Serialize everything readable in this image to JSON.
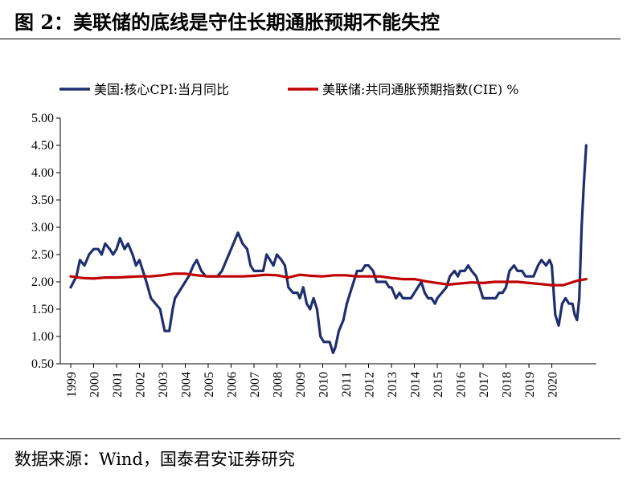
{
  "header": {
    "title": "图 2：美联储的底线是守住长期通胀预期不能失控"
  },
  "footer": {
    "source": "数据来源：Wind，国泰君安证券研究"
  },
  "colors": {
    "cpi": "#1f2f6e",
    "cie": "#c00000"
  },
  "chart_data": {
    "type": "line",
    "title": "",
    "xlabel": "",
    "ylabel": "",
    "ylim": [
      0.5,
      5.0
    ],
    "yticks": [
      "5.00",
      "4.50",
      "4.00",
      "3.50",
      "3.00",
      "2.50",
      "2.00",
      "1.50",
      "1.00",
      "0.50"
    ],
    "xticks": [
      "1999",
      "2000",
      "2001",
      "2002",
      "2003",
      "2004",
      "2005",
      "2006",
      "2007",
      "2008",
      "2009",
      "2010",
      "2011",
      "2012",
      "2013",
      "2014",
      "2015",
      "2016",
      "2017",
      "2018",
      "2019",
      "2020"
    ],
    "grid": false,
    "legend_position": "top",
    "series": [
      {
        "name": "美国:核心CPI:当月同比",
        "color": "#1f2f6e",
        "points": [
          [
            1999.0,
            1.9
          ],
          [
            1999.25,
            2.1
          ],
          [
            1999.4,
            2.4
          ],
          [
            1999.6,
            2.3
          ],
          [
            1999.8,
            2.5
          ],
          [
            2000.0,
            2.6
          ],
          [
            2000.2,
            2.6
          ],
          [
            2000.35,
            2.5
          ],
          [
            2000.5,
            2.7
          ],
          [
            2000.7,
            2.6
          ],
          [
            2000.85,
            2.5
          ],
          [
            2001.0,
            2.6
          ],
          [
            2001.15,
            2.8
          ],
          [
            2001.35,
            2.6
          ],
          [
            2001.5,
            2.7
          ],
          [
            2001.7,
            2.5
          ],
          [
            2001.85,
            2.3
          ],
          [
            2002.0,
            2.4
          ],
          [
            2002.15,
            2.2
          ],
          [
            2002.3,
            2.0
          ],
          [
            2002.5,
            1.7
          ],
          [
            2002.7,
            1.6
          ],
          [
            2002.9,
            1.5
          ],
          [
            2003.0,
            1.3
          ],
          [
            2003.1,
            1.1
          ],
          [
            2003.3,
            1.1
          ],
          [
            2003.45,
            1.5
          ],
          [
            2003.55,
            1.7
          ],
          [
            2003.7,
            1.8
          ],
          [
            2003.85,
            1.9
          ],
          [
            2004.0,
            2.0
          ],
          [
            2004.15,
            2.1
          ],
          [
            2004.35,
            2.3
          ],
          [
            2004.5,
            2.4
          ],
          [
            2004.7,
            2.2
          ],
          [
            2004.9,
            2.1
          ],
          [
            2005.0,
            2.1
          ],
          [
            2005.2,
            2.1
          ],
          [
            2005.4,
            2.1
          ],
          [
            2005.6,
            2.2
          ],
          [
            2005.8,
            2.4
          ],
          [
            2006.0,
            2.6
          ],
          [
            2006.2,
            2.8
          ],
          [
            2006.3,
            2.9
          ],
          [
            2006.5,
            2.7
          ],
          [
            2006.7,
            2.6
          ],
          [
            2006.85,
            2.3
          ],
          [
            2007.0,
            2.2
          ],
          [
            2007.2,
            2.2
          ],
          [
            2007.4,
            2.2
          ],
          [
            2007.55,
            2.5
          ],
          [
            2007.7,
            2.4
          ],
          [
            2007.85,
            2.3
          ],
          [
            2008.0,
            2.5
          ],
          [
            2008.2,
            2.4
          ],
          [
            2008.35,
            2.3
          ],
          [
            2008.5,
            1.9
          ],
          [
            2008.7,
            1.8
          ],
          [
            2008.9,
            1.8
          ],
          [
            2009.0,
            1.7
          ],
          [
            2009.15,
            1.9
          ],
          [
            2009.3,
            1.6
          ],
          [
            2009.45,
            1.5
          ],
          [
            2009.6,
            1.7
          ],
          [
            2009.75,
            1.5
          ],
          [
            2009.9,
            1.0
          ],
          [
            2010.05,
            0.9
          ],
          [
            2010.3,
            0.9
          ],
          [
            2010.45,
            0.7
          ],
          [
            2010.55,
            0.8
          ],
          [
            2010.7,
            1.1
          ],
          [
            2010.9,
            1.3
          ],
          [
            2011.05,
            1.6
          ],
          [
            2011.2,
            1.8
          ],
          [
            2011.35,
            2.0
          ],
          [
            2011.5,
            2.2
          ],
          [
            2011.7,
            2.2
          ],
          [
            2011.85,
            2.3
          ],
          [
            2012.0,
            2.3
          ],
          [
            2012.2,
            2.2
          ],
          [
            2012.35,
            2.0
          ],
          [
            2012.55,
            2.0
          ],
          [
            2012.75,
            2.0
          ],
          [
            2012.9,
            1.9
          ],
          [
            2013.0,
            1.9
          ],
          [
            2013.2,
            1.7
          ],
          [
            2013.35,
            1.8
          ],
          [
            2013.5,
            1.7
          ],
          [
            2013.65,
            1.7
          ],
          [
            2013.85,
            1.7
          ],
          [
            2014.0,
            1.8
          ],
          [
            2014.15,
            1.9
          ],
          [
            2014.3,
            2.0
          ],
          [
            2014.45,
            1.8
          ],
          [
            2014.6,
            1.7
          ],
          [
            2014.75,
            1.7
          ],
          [
            2014.9,
            1.6
          ],
          [
            2015.0,
            1.7
          ],
          [
            2015.2,
            1.8
          ],
          [
            2015.4,
            1.9
          ],
          [
            2015.55,
            2.1
          ],
          [
            2015.75,
            2.2
          ],
          [
            2015.9,
            2.1
          ],
          [
            2016.0,
            2.2
          ],
          [
            2016.2,
            2.2
          ],
          [
            2016.35,
            2.3
          ],
          [
            2016.5,
            2.2
          ],
          [
            2016.7,
            2.1
          ],
          [
            2016.85,
            1.9
          ],
          [
            2017.0,
            1.7
          ],
          [
            2017.2,
            1.7
          ],
          [
            2017.4,
            1.7
          ],
          [
            2017.55,
            1.7
          ],
          [
            2017.7,
            1.8
          ],
          [
            2017.85,
            1.8
          ],
          [
            2018.0,
            1.9
          ],
          [
            2018.15,
            2.2
          ],
          [
            2018.35,
            2.3
          ],
          [
            2018.5,
            2.2
          ],
          [
            2018.7,
            2.2
          ],
          [
            2018.85,
            2.1
          ],
          [
            2019.0,
            2.1
          ],
          [
            2019.2,
            2.1
          ],
          [
            2019.4,
            2.3
          ],
          [
            2019.55,
            2.4
          ],
          [
            2019.75,
            2.3
          ],
          [
            2019.9,
            2.4
          ],
          [
            2020.0,
            2.3
          ],
          [
            2020.15,
            1.4
          ],
          [
            2020.3,
            1.2
          ],
          [
            2020.45,
            1.6
          ],
          [
            2020.6,
            1.7
          ],
          [
            2020.75,
            1.6
          ],
          [
            2020.9,
            1.6
          ],
          [
            2021.0,
            1.4
          ],
          [
            2021.1,
            1.3
          ],
          [
            2021.2,
            1.7
          ],
          [
            2021.3,
            3.0
          ],
          [
            2021.4,
            3.8
          ],
          [
            2021.5,
            4.5
          ]
        ]
      },
      {
        "name": "美联储:共同通胀预期指数(CIE) %",
        "color": "#c00000",
        "points": [
          [
            1999.0,
            2.1
          ],
          [
            1999.5,
            2.07
          ],
          [
            2000.0,
            2.06
          ],
          [
            2000.5,
            2.08
          ],
          [
            2001.0,
            2.08
          ],
          [
            2001.5,
            2.09
          ],
          [
            2002.0,
            2.1
          ],
          [
            2002.5,
            2.1
          ],
          [
            2003.0,
            2.12
          ],
          [
            2003.5,
            2.15
          ],
          [
            2004.0,
            2.15
          ],
          [
            2004.5,
            2.12
          ],
          [
            2005.0,
            2.1
          ],
          [
            2005.5,
            2.1
          ],
          [
            2006.0,
            2.1
          ],
          [
            2006.5,
            2.1
          ],
          [
            2007.0,
            2.11
          ],
          [
            2007.5,
            2.13
          ],
          [
            2008.0,
            2.12
          ],
          [
            2008.5,
            2.08
          ],
          [
            2009.0,
            2.13
          ],
          [
            2009.5,
            2.11
          ],
          [
            2010.0,
            2.1
          ],
          [
            2010.5,
            2.12
          ],
          [
            2011.0,
            2.12
          ],
          [
            2011.5,
            2.1
          ],
          [
            2012.0,
            2.1
          ],
          [
            2012.5,
            2.1
          ],
          [
            2013.0,
            2.07
          ],
          [
            2013.5,
            2.05
          ],
          [
            2014.0,
            2.05
          ],
          [
            2014.5,
            2.01
          ],
          [
            2015.0,
            1.98
          ],
          [
            2015.5,
            1.95
          ],
          [
            2016.0,
            1.97
          ],
          [
            2016.5,
            1.99
          ],
          [
            2017.0,
            1.98
          ],
          [
            2017.5,
            2.0
          ],
          [
            2018.0,
            2.0
          ],
          [
            2018.5,
            2.0
          ],
          [
            2019.0,
            1.98
          ],
          [
            2019.5,
            1.96
          ],
          [
            2020.0,
            1.94
          ],
          [
            2020.5,
            1.94
          ],
          [
            2020.8,
            1.98
          ],
          [
            2021.1,
            2.02
          ],
          [
            2021.5,
            2.05
          ]
        ]
      }
    ]
  }
}
